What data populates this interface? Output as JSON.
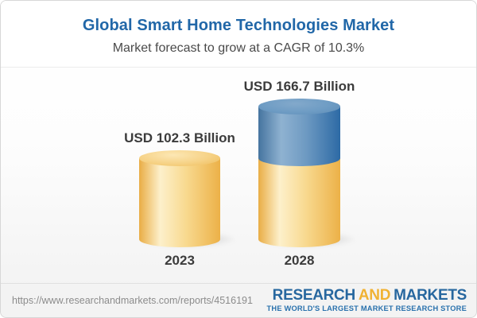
{
  "header": {
    "title": "Global Smart Home Technologies Market",
    "subtitle": "Market forecast to grow at a CAGR of 10.3%"
  },
  "chart_data": {
    "type": "bar",
    "variant": "3d-cylinder-stacked",
    "title": "Global Smart Home Technologies Market",
    "subtitle": "Market forecast to grow at a CAGR of 10.3%",
    "categories": [
      "2023",
      "2028"
    ],
    "values": [
      102.3,
      166.7
    ],
    "value_labels": [
      "USD 102.3 Billion",
      "USD 166.7 Billion"
    ],
    "unit": "USD Billion",
    "cagr_percent": 10.3,
    "stacked_segments": [
      {
        "category": "2028",
        "base_value": 102.3,
        "growth_value": 64.4
      }
    ],
    "ylim": [
      0,
      180
    ],
    "grid": false,
    "legend": false,
    "colors": {
      "base_segment": "#f6cf7e",
      "growth_segment": "#5f90bb",
      "label_text": "#3b3b3b"
    }
  },
  "footer": {
    "url": "https://www.researchandmarkets.com/reports/4516191",
    "logo": {
      "research": "RESEARCH",
      "and": "AND",
      "markets": "MARKETS",
      "tagline": "THE WORLD'S LARGEST MARKET RESEARCH STORE",
      "brand_blue": "#27679f",
      "brand_gold": "#f0b233"
    }
  },
  "theme": {
    "title_blue": "#2167a8",
    "subtitle_gray": "#4a4a4a",
    "background_top": "#ffffff",
    "background_bottom": "#f1f1f1"
  }
}
